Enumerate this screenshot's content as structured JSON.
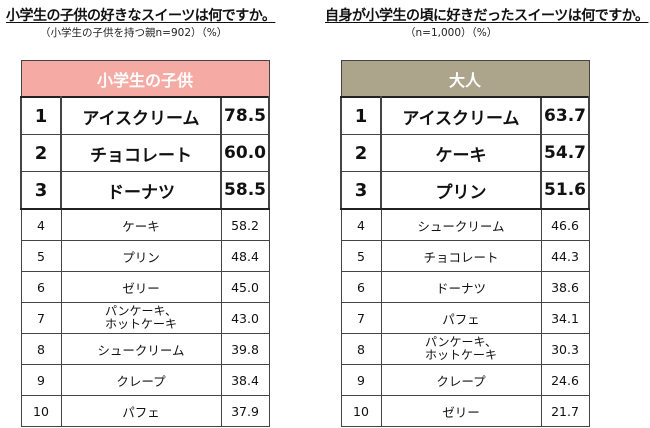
{
  "left": {
    "heading": "小学生の子供の好きなスイーツは何ですか。",
    "subheading": "（小学生の子供を持つ親n=902）（%）",
    "table_header": "小学生の子供",
    "header_color": "#f5aba3",
    "rows": [
      {
        "rank": "1",
        "item": "アイスクリーム",
        "pct": "78.5"
      },
      {
        "rank": "2",
        "item": "チョコレート",
        "pct": "60.0"
      },
      {
        "rank": "3",
        "item": "ドーナツ",
        "pct": "58.5"
      },
      {
        "rank": "4",
        "item": "ケーキ",
        "pct": "58.2"
      },
      {
        "rank": "5",
        "item": "プリン",
        "pct": "48.4"
      },
      {
        "rank": "6",
        "item": "ゼリー",
        "pct": "45.0"
      },
      {
        "rank": "7",
        "item_line1": "パンケーキ、",
        "item_line2": "ホットケーキ",
        "pct": "43.0"
      },
      {
        "rank": "8",
        "item": "シュークリーム",
        "pct": "39.8"
      },
      {
        "rank": "9",
        "item": "クレープ",
        "pct": "38.4"
      },
      {
        "rank": "10",
        "item": "パフェ",
        "pct": "37.9"
      }
    ]
  },
  "right": {
    "heading": "自身が小学生の頃に好きだったスイーツは何ですか。",
    "subheading": "（n=1,000）（%）",
    "table_header": "大人",
    "header_color": "#ada48c",
    "rows": [
      {
        "rank": "1",
        "item": "アイスクリーム",
        "pct": "63.7"
      },
      {
        "rank": "2",
        "item": "ケーキ",
        "pct": "54.7"
      },
      {
        "rank": "3",
        "item": "プリン",
        "pct": "51.6"
      },
      {
        "rank": "4",
        "item": "シュークリーム",
        "pct": "46.6"
      },
      {
        "rank": "5",
        "item": "チョコレート",
        "pct": "44.3"
      },
      {
        "rank": "6",
        "item": "ドーナツ",
        "pct": "38.6"
      },
      {
        "rank": "7",
        "item": "パフェ",
        "pct": "34.1"
      },
      {
        "rank": "8",
        "item_line1": "パンケーキ、",
        "item_line2": "ホットケーキ",
        "pct": "30.3"
      },
      {
        "rank": "9",
        "item": "クレープ",
        "pct": "24.6"
      },
      {
        "rank": "10",
        "item": "ゼリー",
        "pct": "21.7"
      }
    ]
  }
}
